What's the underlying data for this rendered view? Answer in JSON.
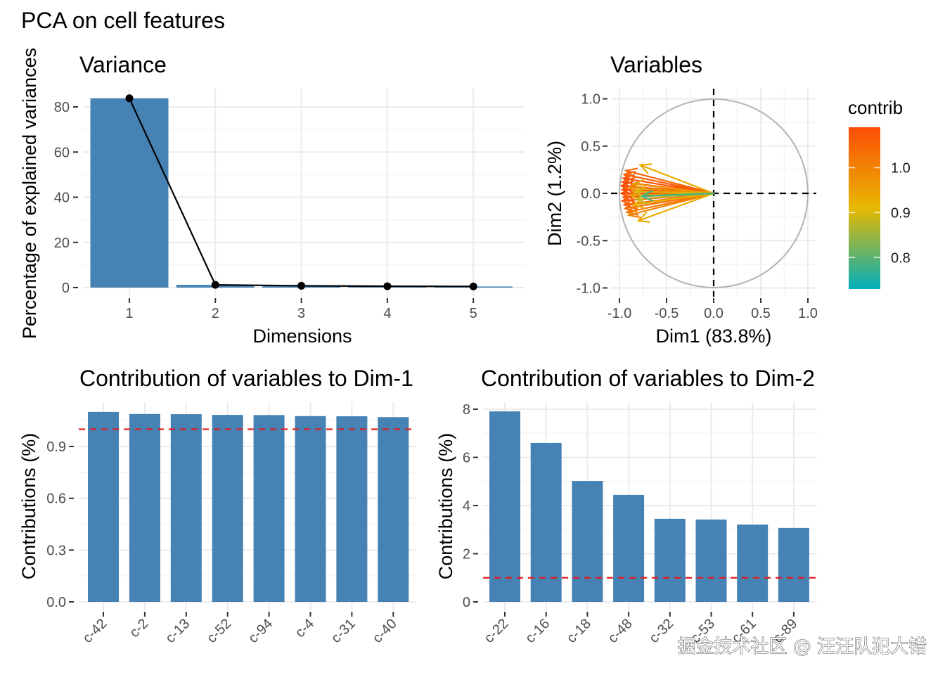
{
  "figure": {
    "title": "PCA on cell features",
    "watermark": "掘金技术社区 @ 汪汪队犯大错"
  },
  "colors": {
    "bar": "#4682B4",
    "line": "#000000",
    "reference_line": "#E41A1C",
    "circle": "#B3B3B3",
    "grid_major": "#EBEBEB",
    "grid_minor": "#F4F4F4",
    "gradient": [
      "#FC4E07",
      "#E7B800",
      "#00AFBB"
    ]
  },
  "chart_data": [
    {
      "id": "variance",
      "type": "bar",
      "title": "Variance",
      "xlabel": "Dimensions",
      "ylabel": "Percentage of explained variances",
      "categories": [
        "1",
        "2",
        "3",
        "4",
        "5"
      ],
      "values": [
        83.8,
        1.2,
        0.8,
        0.6,
        0.5
      ],
      "line_overlay": true,
      "ylim": [
        0,
        87
      ],
      "yticks": [
        0,
        20,
        40,
        60,
        80
      ],
      "grid": true
    },
    {
      "id": "variables",
      "type": "scatter",
      "subtype": "correlation-circle-arrows",
      "title": "Variables",
      "xlabel": "Dim1 (83.8%)",
      "ylabel": "Dim2 (1.2%)",
      "xlim": [
        -1.0,
        1.0
      ],
      "ylim": [
        -1.0,
        1.0
      ],
      "xticks": [
        "-1.0",
        "-0.5",
        "0.0",
        "0.5",
        "1.0"
      ],
      "yticks": [
        "1.0",
        "0.5",
        "0.0",
        "-0.5",
        "-1.0"
      ],
      "legend": {
        "title": "contrib",
        "position": "right",
        "ticks": [
          "1.0",
          "0.9",
          "0.8"
        ],
        "range": [
          0.73,
          1.09
        ]
      },
      "arrows": [
        {
          "x": -0.78,
          "y": 0.3,
          "contrib": 0.93
        },
        {
          "x": -0.8,
          "y": -0.29,
          "contrib": 0.93
        },
        {
          "x": -0.93,
          "y": 0.24,
          "contrib": 1.05
        },
        {
          "x": -0.95,
          "y": 0.2,
          "contrib": 1.07
        },
        {
          "x": -0.96,
          "y": 0.16,
          "contrib": 1.08
        },
        {
          "x": -0.97,
          "y": 0.12,
          "contrib": 1.09
        },
        {
          "x": -0.98,
          "y": 0.08,
          "contrib": 1.1
        },
        {
          "x": -0.97,
          "y": 0.04,
          "contrib": 1.08
        },
        {
          "x": -0.98,
          "y": 0.0,
          "contrib": 1.09
        },
        {
          "x": -0.96,
          "y": -0.04,
          "contrib": 1.07
        },
        {
          "x": -0.97,
          "y": -0.08,
          "contrib": 1.08
        },
        {
          "x": -0.95,
          "y": -0.12,
          "contrib": 1.06
        },
        {
          "x": -0.94,
          "y": -0.16,
          "contrib": 1.04
        },
        {
          "x": -0.92,
          "y": -0.2,
          "contrib": 1.02
        },
        {
          "x": -0.9,
          "y": -0.23,
          "contrib": 1.0
        },
        {
          "x": -0.86,
          "y": 0.1,
          "contrib": 0.96
        },
        {
          "x": -0.84,
          "y": 0.02,
          "contrib": 0.9
        },
        {
          "x": -0.82,
          "y": -0.06,
          "contrib": 0.88
        },
        {
          "x": -0.85,
          "y": -0.12,
          "contrib": 0.92
        },
        {
          "x": -0.76,
          "y": -0.03,
          "contrib": 0.78
        },
        {
          "x": -0.9,
          "y": 0.06,
          "contrib": 0.98
        },
        {
          "x": -0.88,
          "y": -0.02,
          "contrib": 0.95
        }
      ]
    },
    {
      "id": "contrib-dim1",
      "type": "bar",
      "title": "Contribution of variables to Dim-1",
      "xlabel": "",
      "ylabel": "Contributions (%)",
      "categories": [
        "c-42",
        "c-2",
        "c-13",
        "c-52",
        "c-94",
        "c-4",
        "c-31",
        "c-40"
      ],
      "values": [
        1.1,
        1.088,
        1.087,
        1.083,
        1.082,
        1.076,
        1.075,
        1.07
      ],
      "reference_line": 1.0,
      "ylim": [
        0,
        1.13
      ],
      "yticks": [
        "0.0",
        "0.3",
        "0.6",
        "0.9"
      ],
      "grid": true
    },
    {
      "id": "contrib-dim2",
      "type": "bar",
      "title": "Contribution of variables to Dim-2",
      "xlabel": "",
      "ylabel": "Contributions (%)",
      "categories": [
        "c-22",
        "c-16",
        "c-18",
        "c-48",
        "c-32",
        "c-53",
        "c-61",
        "c-89"
      ],
      "values": [
        7.91,
        6.6,
        5.02,
        4.44,
        3.45,
        3.42,
        3.21,
        3.07
      ],
      "reference_line": 1.0,
      "ylim": [
        0,
        8.3
      ],
      "yticks": [
        "0",
        "2",
        "4",
        "6",
        "8"
      ],
      "grid": true
    }
  ]
}
